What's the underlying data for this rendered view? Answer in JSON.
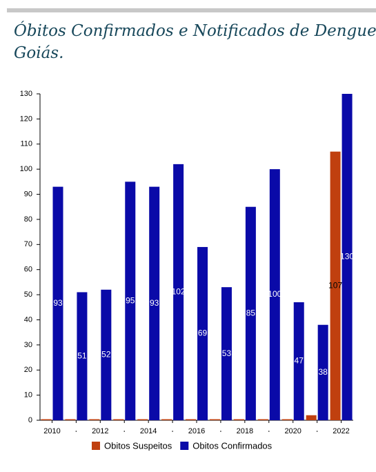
{
  "chart_data": {
    "type": "bar",
    "title_lines": [
      "Óbitos Confirmados e Notificados de Dengue no Estado de",
      "Goiás."
    ],
    "categories": [
      "2010",
      null,
      "2012",
      null,
      "2014",
      null,
      "2016",
      null,
      "2018",
      null,
      "2020",
      null,
      "2022"
    ],
    "series": [
      {
        "name": "Obitos Suspeitos",
        "color": "#c0400f",
        "values": [
          0,
          0,
          0,
          0,
          0,
          0,
          0,
          0,
          0,
          0,
          0,
          2,
          107
        ]
      },
      {
        "name": "Obitos Confirmados",
        "color": "#0a0aa8",
        "values": [
          93,
          51,
          52,
          95,
          93,
          102,
          69,
          53,
          85,
          100,
          47,
          38,
          130
        ]
      }
    ],
    "ylim": [
      0,
      130
    ],
    "yticks": [
      0,
      10,
      20,
      30,
      40,
      50,
      60,
      70,
      80,
      90,
      100,
      110,
      120,
      130
    ],
    "grid": false
  }
}
